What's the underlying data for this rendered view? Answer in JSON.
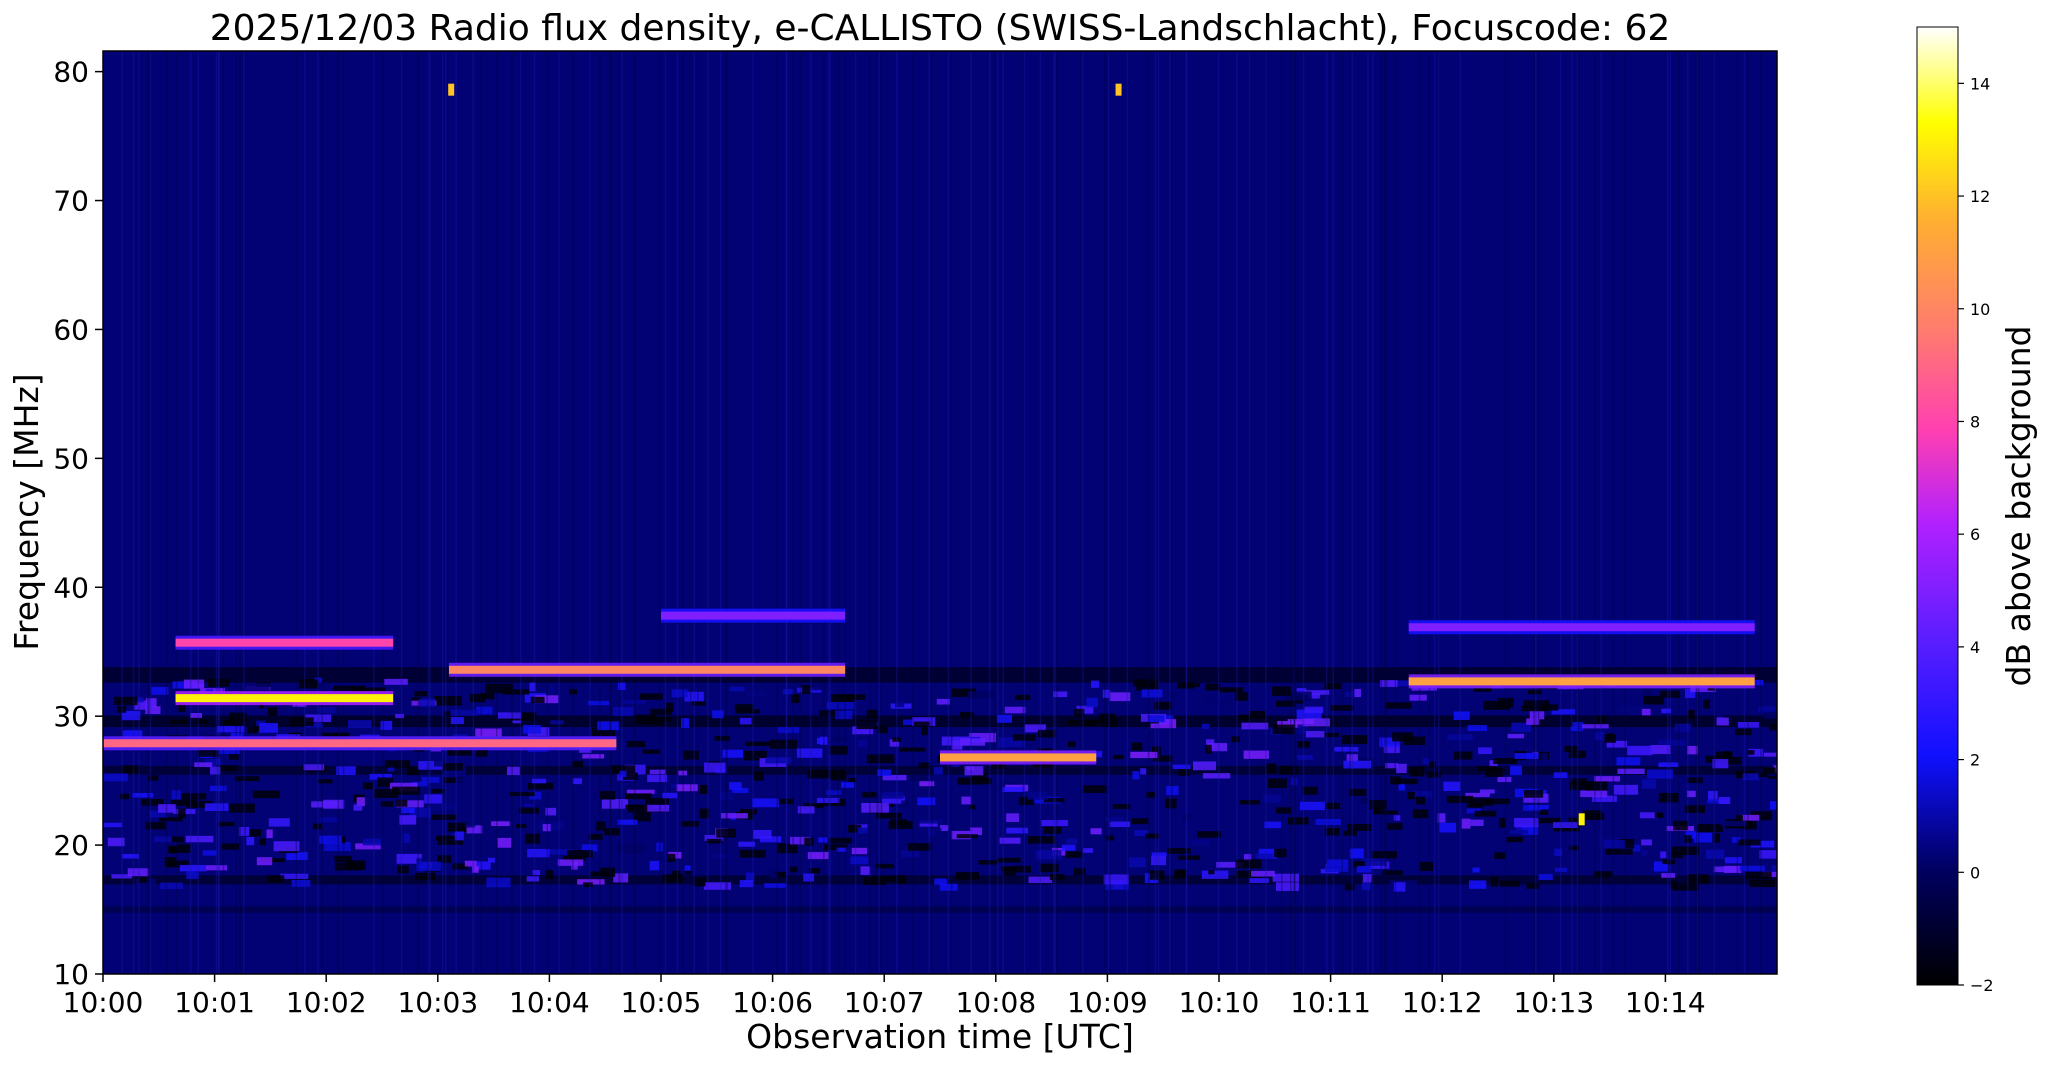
{
  "chart_data": {
    "type": "heatmap",
    "title": "2025/12/03  Radio flux density, e-CALLISTO (SWISS-Landschlacht), Focuscode: 62",
    "xlabel": "Observation time [UTC]",
    "ylabel": "Frequency [MHz]",
    "colorbar_label": "dB above background",
    "colormap": "gnuplot2",
    "x_tick_labels": [
      "10:00",
      "10:01",
      "10:02",
      "10:03",
      "10:04",
      "10:05",
      "10:06",
      "10:07",
      "10:08",
      "10:09",
      "10:10",
      "10:11",
      "10:12",
      "10:13",
      "10:14"
    ],
    "x_range_minutes": [
      0,
      15
    ],
    "y_ticks": [
      10,
      20,
      30,
      40,
      50,
      60,
      70,
      80
    ],
    "y_range": [
      10,
      81.6
    ],
    "colorbar_ticks": [
      -2,
      0,
      2,
      4,
      6,
      8,
      10,
      12,
      14
    ],
    "colorbar_range": [
      -2,
      15
    ],
    "background_level_db": 0.3,
    "features": [
      {
        "kind": "band",
        "t_start": 0.65,
        "t_end": 2.6,
        "freq": 31.4,
        "db": 13
      },
      {
        "kind": "band",
        "t_start": 0.65,
        "t_end": 2.6,
        "freq": 35.7,
        "db": 8
      },
      {
        "kind": "band",
        "t_start": 3.1,
        "t_end": 6.65,
        "freq": 33.6,
        "db": 10
      },
      {
        "kind": "band",
        "t_start": 5.0,
        "t_end": 6.65,
        "freq": 37.8,
        "db": 5
      },
      {
        "kind": "band",
        "t_start": 11.7,
        "t_end": 14.8,
        "freq": 32.7,
        "db": 11
      },
      {
        "kind": "band",
        "t_start": 11.7,
        "t_end": 14.8,
        "freq": 36.9,
        "db": 5
      },
      {
        "kind": "band",
        "t_start": 7.5,
        "t_end": 8.9,
        "freq": 26.8,
        "db": 11
      },
      {
        "kind": "band",
        "t_start": 0.0,
        "t_end": 4.6,
        "freq": 27.9,
        "db": 9
      },
      {
        "kind": "spot",
        "t": 3.12,
        "freq": 78.6,
        "db": 12
      },
      {
        "kind": "spot",
        "t": 9.1,
        "freq": 78.6,
        "db": 12
      },
      {
        "kind": "spot",
        "t": 13.25,
        "freq": 22.0,
        "db": 13
      }
    ]
  }
}
